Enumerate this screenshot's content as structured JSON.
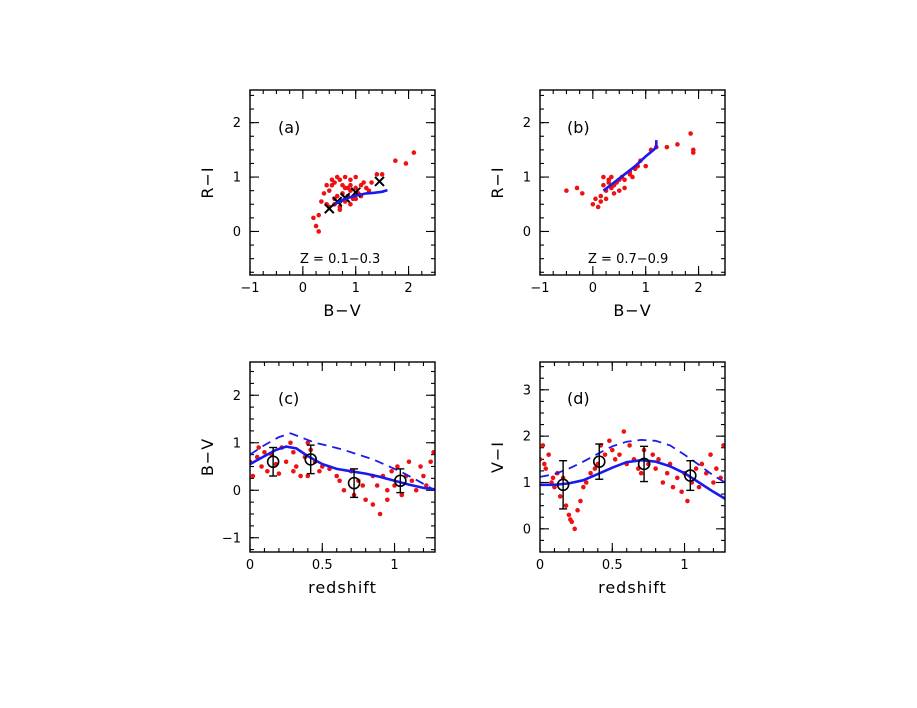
{
  "chart_data": [
    {
      "id": "a",
      "type": "scatter",
      "panel_label": "(a)",
      "annotation": "Z  =  0.1−0.3",
      "xlabel": "B−V",
      "ylabel": "R−I",
      "xlim": [
        -1,
        2.5
      ],
      "ylim": [
        -0.8,
        2.6
      ],
      "xticks": [
        -1,
        0,
        1,
        2
      ],
      "yticks": [
        0,
        1,
        2
      ],
      "series": [
        {
          "kind": "points",
          "color": "#ee1111",
          "x": [
            0.2,
            0.3,
            0.35,
            0.4,
            0.45,
            0.5,
            0.55,
            0.6,
            0.6,
            0.65,
            0.7,
            0.7,
            0.75,
            0.8,
            0.8,
            0.85,
            0.9,
            0.9,
            0.95,
            1.0,
            1.0,
            1.05,
            1.1,
            1.15,
            1.2,
            1.3,
            1.4,
            0.5,
            0.6,
            0.7,
            0.8,
            0.9,
            1.0,
            0.55,
            0.65,
            0.75,
            0.85,
            1.0,
            1.1,
            0.45,
            0.7,
            1.25,
            1.5,
            1.75,
            1.95,
            2.1,
            0.25,
            0.3,
            0.9
          ],
          "y": [
            0.25,
            0.3,
            0.55,
            0.7,
            0.5,
            0.75,
            0.85,
            0.6,
            0.9,
            0.65,
            0.55,
            0.95,
            0.7,
            0.8,
            1.0,
            0.65,
            0.75,
            0.95,
            0.6,
            0.8,
            1.0,
            0.7,
            0.85,
            0.9,
            0.8,
            0.9,
            1.05,
            0.45,
            0.5,
            0.45,
            0.55,
            0.5,
            0.6,
            0.95,
            1.0,
            0.85,
            0.8,
            0.7,
            0.65,
            0.85,
            0.4,
            0.75,
            1.05,
            1.3,
            1.25,
            1.45,
            0.1,
            0.0,
            0.85
          ]
        },
        {
          "kind": "crosses",
          "color": "#000000",
          "x": [
            0.5,
            0.65,
            0.8,
            1.0,
            1.45
          ],
          "y": [
            0.42,
            0.55,
            0.62,
            0.72,
            0.92
          ]
        },
        {
          "kind": "line",
          "style": "solid",
          "color": "#1a1aee",
          "x": [
            0.6,
            0.75,
            0.9,
            1.05,
            1.2,
            1.35,
            1.5,
            1.6
          ],
          "y": [
            0.5,
            0.58,
            0.63,
            0.67,
            0.7,
            0.71,
            0.73,
            0.76
          ]
        }
      ]
    },
    {
      "id": "b",
      "type": "scatter",
      "panel_label": "(b)",
      "annotation": "Z  =  0.7−0.9",
      "xlabel": "B−V",
      "ylabel": "R−I",
      "xlim": [
        -1,
        2.5
      ],
      "ylim": [
        -0.8,
        2.6
      ],
      "xticks": [
        -1,
        0,
        1,
        2
      ],
      "yticks": [
        0,
        1,
        2
      ],
      "series": [
        {
          "kind": "points",
          "color": "#ee1111",
          "x": [
            -0.5,
            -0.3,
            -0.2,
            0.0,
            0.05,
            0.1,
            0.15,
            0.2,
            0.2,
            0.25,
            0.3,
            0.3,
            0.35,
            0.4,
            0.45,
            0.5,
            0.55,
            0.6,
            0.6,
            0.7,
            0.75,
            0.8,
            0.85,
            0.9,
            1.0,
            1.1,
            1.2,
            1.4,
            1.6,
            1.85,
            1.9,
            1.9,
            0.4,
            0.5,
            0.25,
            0.35,
            0.15,
            0.7
          ],
          "y": [
            0.75,
            0.8,
            0.7,
            0.5,
            0.6,
            0.45,
            0.65,
            0.85,
            1.0,
            0.75,
            0.9,
            0.95,
            1.0,
            0.85,
            0.9,
            0.95,
            1.0,
            0.95,
            0.8,
            1.1,
            1.0,
            1.15,
            1.2,
            1.3,
            1.2,
            1.5,
            1.55,
            1.55,
            1.6,
            1.8,
            1.5,
            1.45,
            0.7,
            0.75,
            0.6,
            0.8,
            0.55,
            1.05
          ]
        },
        {
          "kind": "line",
          "style": "solid",
          "color": "#1a1aee",
          "x": [
            0.2,
            0.4,
            0.6,
            0.8,
            1.0,
            1.15,
            1.2,
            1.2
          ],
          "y": [
            0.75,
            0.9,
            1.05,
            1.2,
            1.38,
            1.5,
            1.55,
            1.68
          ]
        }
      ]
    },
    {
      "id": "c",
      "type": "scatter",
      "panel_label": "(c)",
      "annotation": "",
      "xlabel": "redshift",
      "ylabel": "B−V",
      "xlim": [
        0,
        1.28
      ],
      "ylim": [
        -1.3,
        2.7
      ],
      "xticks": [
        0,
        0.5,
        1
      ],
      "xticklabels": [
        "0",
        "0.5",
        "1"
      ],
      "yticks": [
        -1,
        0,
        1,
        2
      ],
      "series": [
        {
          "kind": "points",
          "color": "#ee1111",
          "x": [
            0.0,
            0.02,
            0.05,
            0.08,
            0.1,
            0.12,
            0.15,
            0.18,
            0.2,
            0.22,
            0.25,
            0.28,
            0.3,
            0.32,
            0.35,
            0.38,
            0.4,
            0.42,
            0.45,
            0.48,
            0.5,
            0.55,
            0.6,
            0.62,
            0.65,
            0.7,
            0.72,
            0.75,
            0.78,
            0.8,
            0.85,
            0.88,
            0.9,
            0.92,
            0.95,
            0.98,
            1.0,
            1.02,
            1.05,
            1.08,
            1.1,
            1.12,
            1.15,
            1.18,
            1.2,
            1.22,
            1.25,
            1.27,
            0.3,
            0.4,
            0.06,
            0.85,
            0.95
          ],
          "y": [
            0.6,
            0.3,
            0.7,
            0.5,
            0.8,
            0.4,
            0.75,
            0.55,
            0.35,
            0.9,
            0.6,
            1.0,
            0.8,
            0.5,
            0.3,
            0.7,
            1.0,
            0.85,
            0.6,
            0.4,
            0.5,
            0.45,
            0.3,
            0.2,
            0.0,
            0.4,
            -0.1,
            0.2,
            0.1,
            -0.2,
            -0.3,
            0.1,
            -0.5,
            0.3,
            0.0,
            0.4,
            0.1,
            0.5,
            -0.1,
            0.3,
            0.6,
            0.2,
            0.0,
            0.5,
            0.3,
            0.1,
            0.6,
            0.8,
            0.4,
            0.3,
            0.9,
            0.3,
            -0.2
          ]
        },
        {
          "kind": "line",
          "style": "dashed",
          "color": "#1a1aee",
          "x": [
            0.0,
            0.1,
            0.2,
            0.28,
            0.35,
            0.45,
            0.55,
            0.65,
            0.75,
            0.85,
            0.95,
            1.05,
            1.15,
            1.28
          ],
          "y": [
            0.75,
            0.95,
            1.12,
            1.2,
            1.12,
            1.0,
            0.93,
            0.85,
            0.75,
            0.65,
            0.52,
            0.38,
            0.22,
            0.0
          ]
        },
        {
          "kind": "line",
          "style": "solid",
          "color": "#1a1aee",
          "x": [
            0.0,
            0.1,
            0.18,
            0.25,
            0.32,
            0.4,
            0.5,
            0.6,
            0.7,
            0.8,
            0.9,
            1.0,
            1.1,
            1.2,
            1.28
          ],
          "y": [
            0.55,
            0.72,
            0.85,
            0.92,
            0.88,
            0.72,
            0.55,
            0.45,
            0.4,
            0.35,
            0.28,
            0.2,
            0.12,
            0.05,
            0.02
          ]
        },
        {
          "kind": "errorbars",
          "color": "#000000",
          "x": [
            0.16,
            0.42,
            0.72,
            1.04
          ],
          "y": [
            0.6,
            0.65,
            0.15,
            0.2
          ],
          "err": [
            0.3,
            0.3,
            0.3,
            0.25
          ]
        }
      ]
    },
    {
      "id": "d",
      "type": "scatter",
      "panel_label": "(d)",
      "annotation": "",
      "xlabel": "redshift",
      "ylabel": "V−I",
      "xlim": [
        0,
        1.28
      ],
      "ylim": [
        -0.5,
        3.6
      ],
      "xticks": [
        0,
        0.5,
        1
      ],
      "xticklabels": [
        "0",
        "0.5",
        "1"
      ],
      "yticks": [
        0,
        1,
        2,
        3
      ],
      "series": [
        {
          "kind": "points",
          "color": "#ee1111",
          "x": [
            0.0,
            0.02,
            0.04,
            0.06,
            0.08,
            0.1,
            0.12,
            0.14,
            0.16,
            0.18,
            0.2,
            0.22,
            0.24,
            0.26,
            0.28,
            0.3,
            0.32,
            0.35,
            0.38,
            0.4,
            0.42,
            0.45,
            0.48,
            0.5,
            0.52,
            0.55,
            0.58,
            0.6,
            0.62,
            0.65,
            0.68,
            0.7,
            0.72,
            0.75,
            0.78,
            0.8,
            0.82,
            0.85,
            0.88,
            0.9,
            0.92,
            0.95,
            0.98,
            1.0,
            1.02,
            1.05,
            1.08,
            1.1,
            1.12,
            1.15,
            1.18,
            1.2,
            1.22,
            1.25,
            1.27,
            0.03,
            0.09,
            0.21
          ],
          "y": [
            1.5,
            1.8,
            1.3,
            1.6,
            1.0,
            0.9,
            1.2,
            0.7,
            1.1,
            0.5,
            0.3,
            0.15,
            0.0,
            0.4,
            0.6,
            0.9,
            1.0,
            1.2,
            1.3,
            1.4,
            1.8,
            1.6,
            1.9,
            1.7,
            1.5,
            1.6,
            2.1,
            1.4,
            1.8,
            1.5,
            1.3,
            1.2,
            1.7,
            1.4,
            1.6,
            1.3,
            1.5,
            1.0,
            1.2,
            1.4,
            0.9,
            1.1,
            0.8,
            1.2,
            0.6,
            1.0,
            1.3,
            0.9,
            1.4,
            1.2,
            1.6,
            1.0,
            1.3,
            1.1,
            1.8,
            1.4,
            1.1,
            0.2
          ]
        },
        {
          "kind": "line",
          "style": "dashed",
          "color": "#1a1aee",
          "x": [
            0.0,
            0.1,
            0.2,
            0.3,
            0.4,
            0.5,
            0.6,
            0.7,
            0.8,
            0.9,
            1.0,
            1.1,
            1.2,
            1.28
          ],
          "y": [
            1.12,
            1.18,
            1.3,
            1.45,
            1.62,
            1.78,
            1.88,
            1.92,
            1.9,
            1.8,
            1.6,
            1.38,
            1.15,
            1.0
          ]
        },
        {
          "kind": "line",
          "style": "solid",
          "color": "#1a1aee",
          "x": [
            0.0,
            0.1,
            0.2,
            0.3,
            0.4,
            0.5,
            0.6,
            0.7,
            0.8,
            0.9,
            1.0,
            1.1,
            1.2,
            1.28
          ],
          "y": [
            0.95,
            0.95,
            0.98,
            1.05,
            1.18,
            1.32,
            1.44,
            1.48,
            1.45,
            1.35,
            1.2,
            1.0,
            0.8,
            0.65
          ]
        },
        {
          "kind": "errorbars",
          "color": "#000000",
          "x": [
            0.16,
            0.41,
            0.72,
            1.04
          ],
          "y": [
            0.95,
            1.45,
            1.4,
            1.15
          ],
          "err": [
            0.52,
            0.38,
            0.38,
            0.32
          ]
        }
      ]
    }
  ]
}
